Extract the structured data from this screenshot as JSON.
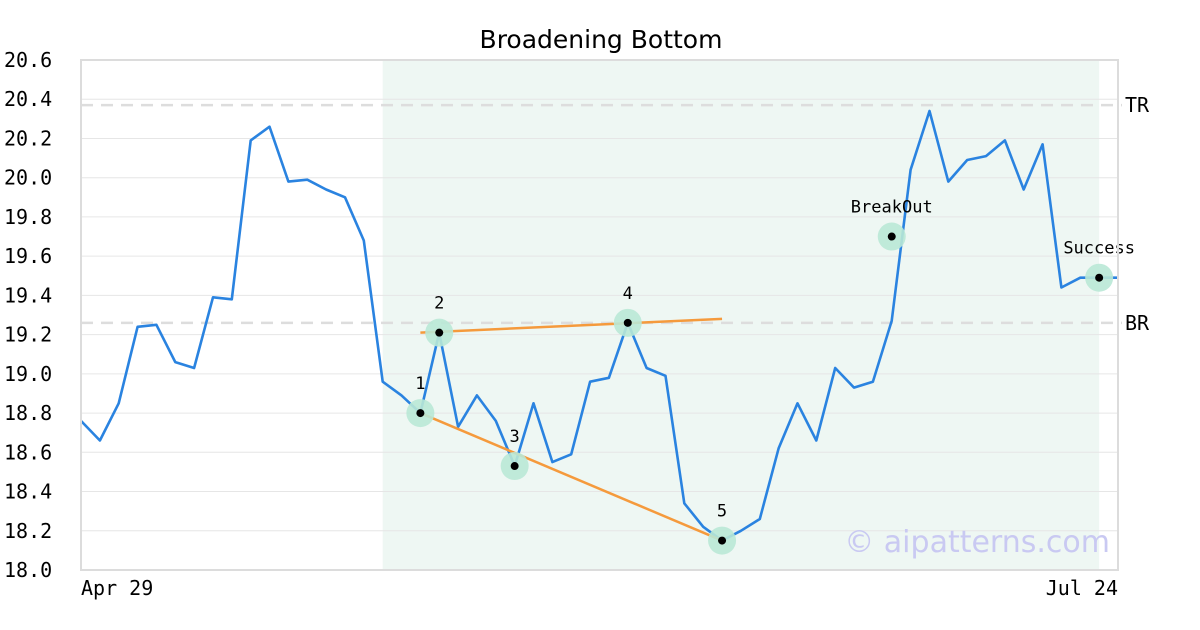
{
  "chart_data": {
    "type": "line",
    "title": "Broadening Bottom",
    "xlabel": "",
    "ylabel": "",
    "ylim": [
      18.0,
      20.6
    ],
    "yticks": [
      "18.0",
      "18.2",
      "18.4",
      "18.6",
      "18.8",
      "19.0",
      "19.2",
      "19.4",
      "19.6",
      "19.8",
      "20.0",
      "20.2",
      "20.4",
      "20.6"
    ],
    "x_tick_labels": [
      "Apr 29",
      "Jul 24"
    ],
    "grid": true,
    "series": [
      {
        "color": "#2a83e0",
        "values": [
          18.76,
          18.66,
          18.85,
          19.24,
          19.25,
          19.06,
          19.03,
          19.39,
          19.38,
          20.19,
          20.26,
          19.98,
          19.99,
          19.94,
          19.9,
          19.68,
          18.96,
          18.89,
          18.8,
          19.21,
          18.73,
          18.89,
          18.76,
          18.53,
          18.85,
          18.55,
          18.59,
          18.96,
          18.98,
          19.26,
          19.03,
          18.99,
          18.34,
          18.22,
          18.15,
          18.2,
          18.26,
          18.62,
          18.85,
          18.66,
          19.03,
          18.93,
          18.96,
          19.27,
          20.04,
          20.34,
          19.98,
          20.09,
          20.11,
          20.19,
          19.94,
          20.17,
          19.44,
          19.49,
          19.49,
          19.49
        ]
      }
    ],
    "pattern_region": {
      "start_index": 16,
      "end_index": 54,
      "color": "#eef7f3"
    },
    "reference_lines": [
      {
        "label": "TR",
        "value": 20.37,
        "color": "#dddddd"
      },
      {
        "label": "BR",
        "value": 19.26,
        "color": "#dddddd"
      }
    ],
    "trend_lines": [
      {
        "from": {
          "index": 18,
          "value": 18.8
        },
        "to": {
          "index": 34,
          "value": 18.15
        },
        "color": "#f59a3c"
      },
      {
        "from": {
          "index": 18,
          "value": 19.21
        },
        "to": {
          "index": 34,
          "value": 19.28
        },
        "color": "#f59a3c"
      }
    ],
    "annotations": [
      {
        "label": "1",
        "index": 18,
        "value": 18.8,
        "label_pos": "above"
      },
      {
        "label": "2",
        "index": 19,
        "value": 19.21,
        "label_pos": "above"
      },
      {
        "label": "3",
        "index": 23,
        "value": 18.53,
        "label_pos": "above"
      },
      {
        "label": "4",
        "index": 29,
        "value": 19.26,
        "label_pos": "above"
      },
      {
        "label": "5",
        "index": 34,
        "value": 18.15,
        "label_pos": "above"
      },
      {
        "label": "BreakOut",
        "index": 43,
        "value": 19.7,
        "label_pos": "above"
      },
      {
        "label": "Success",
        "index": 54,
        "value": 19.49,
        "label_pos": "above"
      }
    ],
    "marker_colors": {
      "halo": "#b9e8d6",
      "dot": "#000000"
    },
    "watermark": "© aipatterns.com"
  }
}
